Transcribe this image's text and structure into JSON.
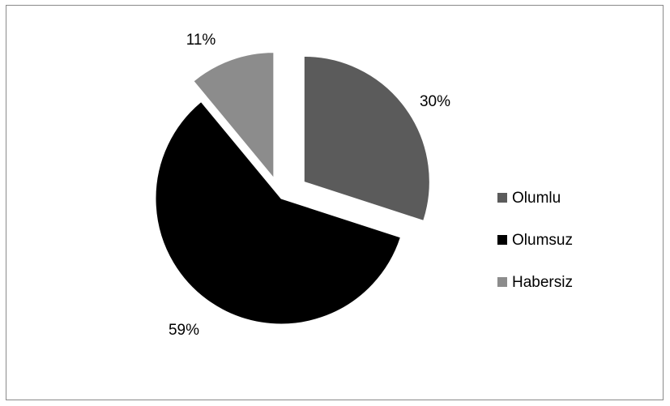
{
  "chart_data": {
    "type": "pie",
    "title": "",
    "categories": [
      "Olumlu",
      "Olumsuz",
      "Habersiz"
    ],
    "values": [
      30,
      59,
      11
    ],
    "data_labels": [
      "30%",
      "59%",
      "11%"
    ],
    "colors": [
      "#5b5b5b",
      "#000000",
      "#8c8c8c"
    ],
    "exploded": true,
    "legend": "right",
    "start_angle_deg": 0,
    "direction": "clockwise"
  }
}
